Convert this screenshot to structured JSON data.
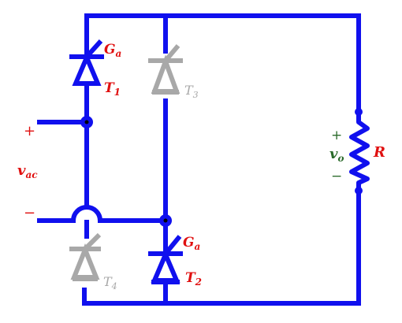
{
  "source": {
    "plus": "+",
    "minus": "−",
    "label": "v",
    "label_sub": "ac"
  },
  "load": {
    "plus": "+",
    "minus": "−",
    "vo_label": "v",
    "vo_sub": "o",
    "r_label": "R"
  },
  "thyristors": [
    {
      "name": "T",
      "sub": "1",
      "gate": "G",
      "gate_sub": "a",
      "state": "conducting"
    },
    {
      "name": "T",
      "sub": "2",
      "gate": "G",
      "gate_sub": "a",
      "state": "conducting"
    },
    {
      "name": "T",
      "sub": "3",
      "state": "off"
    },
    {
      "name": "T",
      "sub": "4",
      "state": "off"
    }
  ],
  "colors": {
    "active": "#1010ee",
    "inactive": "#a8a8a8",
    "label_red": "#e01010",
    "label_green": "#2a6a2a"
  }
}
